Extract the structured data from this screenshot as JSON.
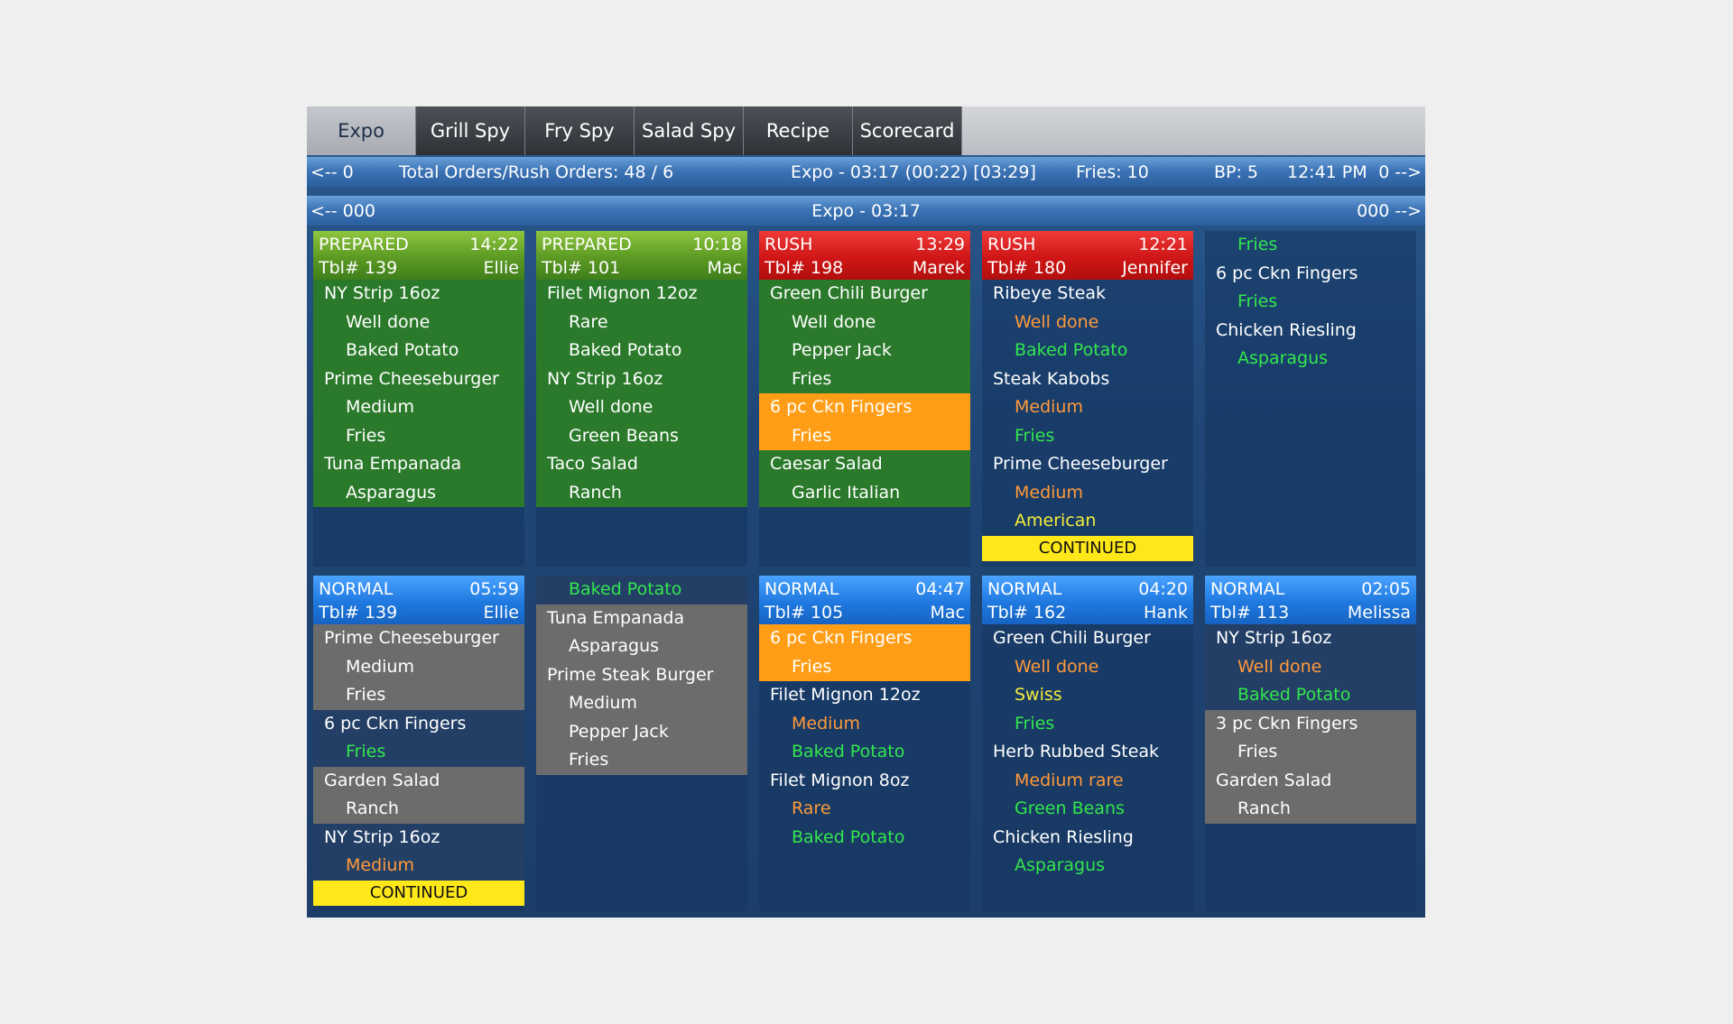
{
  "tabs": [
    "Expo",
    "Grill Spy",
    "Fry Spy",
    "Salad Spy",
    "Recipe",
    "Scorecard"
  ],
  "status1": {
    "left": "<-- 0",
    "totals": "Total Orders/Rush Orders: 48 / 6",
    "expo": "Expo   - 03:17 (00:22) [03:29]",
    "fries": "Fries: 10",
    "bp": "BP: 5",
    "time": "12:41 PM",
    "right": "0 -->"
  },
  "status2": {
    "left": "<-- 000",
    "center": "Expo - 03:17",
    "right": "000 -->"
  },
  "cards": {
    "c1": {
      "status": "PREPARED",
      "time": "14:22",
      "table": "Tbl# 139",
      "server": "Ellie",
      "rows": [
        "NY Strip 16oz",
        "Well done",
        "Baked Potato",
        "Prime Cheeseburger",
        "Medium",
        "Fries",
        "Tuna Empanada",
        "Asparagus"
      ]
    },
    "c2": {
      "status": "PREPARED",
      "time": "10:18",
      "table": "Tbl# 101",
      "server": "Mac",
      "rows": [
        "Filet Mignon 12oz",
        "Rare",
        "Baked Potato",
        "NY Strip 16oz",
        "Well done",
        "Green Beans",
        "Taco Salad",
        "Ranch"
      ]
    },
    "c3": {
      "status": "RUSH",
      "time": "13:29",
      "table": "Tbl# 198",
      "server": "Marek",
      "rows": [
        "Green Chili Burger",
        "Well done",
        "Pepper Jack",
        "Fries",
        "6 pc Ckn Fingers",
        "Fries",
        "Caesar Salad",
        "Garlic Italian"
      ]
    },
    "c4": {
      "status": "RUSH",
      "time": "12:21",
      "table": "Tbl# 180",
      "server": "Jennifer",
      "rows": [
        "Ribeye Steak",
        "Well done",
        "Baked Potato",
        "Steak Kabobs",
        "Medium",
        "Fries",
        "Prime Cheeseburger",
        "Medium",
        "American"
      ],
      "continued": "CONTINUED"
    },
    "c5": {
      "rows": [
        "Fries",
        "6 pc Ckn Fingers",
        "Fries",
        "Chicken Riesling",
        "Asparagus"
      ]
    },
    "c6": {
      "status": "NORMAL",
      "time": "05:59",
      "table": "Tbl# 139",
      "server": "Ellie",
      "rows": [
        "Prime Cheeseburger",
        "Medium",
        "Fries",
        "6 pc Ckn Fingers",
        "Fries",
        "Garden Salad",
        "Ranch",
        "NY Strip 16oz",
        "Medium"
      ],
      "continued": "CONTINUED"
    },
    "c7": {
      "rows": [
        "Baked Potato",
        "Tuna Empanada",
        "Asparagus",
        "Prime Steak Burger",
        "Medium",
        "Pepper Jack",
        "Fries"
      ]
    },
    "c8": {
      "status": "NORMAL",
      "time": "04:47",
      "table": "Tbl# 105",
      "server": "Mac",
      "rows": [
        "6 pc Ckn Fingers",
        "Fries",
        "Filet Mignon 12oz",
        "Medium",
        "Baked Potato",
        "Filet Mignon 8oz",
        "Rare",
        "Baked Potato"
      ]
    },
    "c9": {
      "status": "NORMAL",
      "time": "04:20",
      "table": "Tbl# 162",
      "server": "Hank",
      "rows": [
        "Green Chili Burger",
        "Well done",
        "Swiss",
        "Fries",
        "Herb Rubbed Steak",
        "Medium rare",
        "Green Beans",
        "Chicken Riesling",
        "Asparagus"
      ]
    },
    "c10": {
      "status": "NORMAL",
      "time": "02:05",
      "table": "Tbl# 113",
      "server": "Melissa",
      "rows": [
        "NY Strip 16oz",
        "Well done",
        "Baked Potato",
        "3 pc Ckn Fingers",
        "Fries",
        "Garden Salad",
        "Ranch"
      ]
    }
  },
  "colors": {
    "prepared": "#5c9a24",
    "rush": "#d01616",
    "normal": "#1f79e0",
    "continued": "#ffe81a",
    "item_highlight": "#ff9e16",
    "mod_orange": "#ff9a3a",
    "mod_green": "#33e64d",
    "mod_yellow": "#f3ec3a"
  }
}
